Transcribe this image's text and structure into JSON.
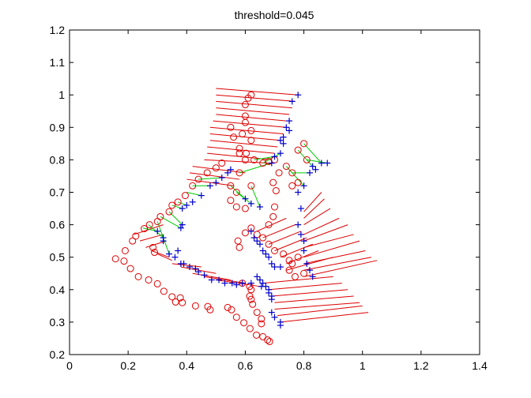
{
  "chart_data": {
    "type": "scatter",
    "title": "threshold=0.045",
    "xlim": [
      0,
      1.4
    ],
    "ylim": [
      0.2,
      1.2
    ],
    "x_ticks": [
      "0",
      "0.2",
      "0.4",
      "0.6",
      "0.8",
      "1",
      "1.2",
      "1.4"
    ],
    "y_ticks": [
      "0.2",
      "0.3",
      "0.4",
      "0.5",
      "0.6",
      "0.7",
      "0.8",
      "0.9",
      "1",
      "1.1",
      "1.2"
    ],
    "grid": false,
    "colors": {
      "circle": "#dd0000",
      "plus": "#0000cc",
      "unmatched_line": "#dd0000",
      "matched_line": "#00cc00"
    },
    "circles": [
      [
        0.157,
        0.495
      ],
      [
        0.186,
        0.488
      ],
      [
        0.208,
        0.465
      ],
      [
        0.235,
        0.44
      ],
      [
        0.27,
        0.43
      ],
      [
        0.3,
        0.418
      ],
      [
        0.322,
        0.395
      ],
      [
        0.35,
        0.378
      ],
      [
        0.362,
        0.362
      ],
      [
        0.378,
        0.375
      ],
      [
        0.385,
        0.36
      ],
      [
        0.43,
        0.35
      ],
      [
        0.472,
        0.348
      ],
      [
        0.48,
        0.338
      ],
      [
        0.54,
        0.345
      ],
      [
        0.553,
        0.338
      ],
      [
        0.57,
        0.315
      ],
      [
        0.595,
        0.298
      ],
      [
        0.616,
        0.28
      ],
      [
        0.638,
        0.26
      ],
      [
        0.66,
        0.255
      ],
      [
        0.676,
        0.245
      ],
      [
        0.683,
        0.24
      ],
      [
        0.19,
        0.52
      ],
      [
        0.215,
        0.55
      ],
      [
        0.226,
        0.565
      ],
      [
        0.255,
        0.588
      ],
      [
        0.273,
        0.6
      ],
      [
        0.3,
        0.61
      ],
      [
        0.31,
        0.625
      ],
      [
        0.34,
        0.64
      ],
      [
        0.35,
        0.66
      ],
      [
        0.37,
        0.67
      ],
      [
        0.395,
        0.69
      ],
      [
        0.42,
        0.72
      ],
      [
        0.44,
        0.74
      ],
      [
        0.47,
        0.76
      ],
      [
        0.5,
        0.775
      ],
      [
        0.52,
        0.79
      ],
      [
        0.285,
        0.53
      ],
      [
        0.29,
        0.515
      ],
      [
        0.55,
        0.72
      ],
      [
        0.57,
        0.7
      ],
      [
        0.62,
        0.72
      ],
      [
        0.55,
        0.675
      ],
      [
        0.57,
        0.655
      ],
      [
        0.6,
        0.65
      ],
      [
        0.58,
        0.76
      ],
      [
        0.6,
        0.935
      ],
      [
        0.6,
        0.915
      ],
      [
        0.603,
        0.82
      ],
      [
        0.6,
        0.8
      ],
      [
        0.58,
        0.82
      ],
      [
        0.58,
        0.835
      ],
      [
        0.56,
        0.87
      ],
      [
        0.59,
        0.88
      ],
      [
        0.55,
        0.9
      ],
      [
        0.61,
        0.99
      ],
      [
        0.6,
        0.97
      ],
      [
        0.62,
        1.0
      ],
      [
        0.62,
        0.86
      ],
      [
        0.62,
        0.89
      ],
      [
        0.63,
        0.8
      ],
      [
        0.66,
        0.79
      ],
      [
        0.68,
        0.795
      ],
      [
        0.7,
        0.8
      ],
      [
        0.715,
        0.76
      ],
      [
        0.74,
        0.78
      ],
      [
        0.76,
        0.76
      ],
      [
        0.78,
        0.73
      ],
      [
        0.76,
        0.72
      ],
      [
        0.78,
        0.83
      ],
      [
        0.8,
        0.85
      ],
      [
        0.81,
        0.8
      ],
      [
        0.695,
        0.73
      ],
      [
        0.705,
        0.705
      ],
      [
        0.7,
        0.655
      ],
      [
        0.695,
        0.625
      ],
      [
        0.68,
        0.6
      ],
      [
        0.58,
        0.53
      ],
      [
        0.575,
        0.55
      ],
      [
        0.6,
        0.575
      ],
      [
        0.62,
        0.59
      ],
      [
        0.64,
        0.57
      ],
      [
        0.66,
        0.56
      ],
      [
        0.68,
        0.54
      ],
      [
        0.7,
        0.52
      ],
      [
        0.73,
        0.51
      ],
      [
        0.75,
        0.49
      ],
      [
        0.76,
        0.48
      ],
      [
        0.75,
        0.46
      ],
      [
        0.77,
        0.44
      ],
      [
        0.8,
        0.45
      ],
      [
        0.78,
        0.5
      ],
      [
        0.59,
        0.42
      ],
      [
        0.615,
        0.41
      ],
      [
        0.62,
        0.4
      ],
      [
        0.615,
        0.38
      ],
      [
        0.62,
        0.37
      ],
      [
        0.625,
        0.355
      ],
      [
        0.64,
        0.33
      ],
      [
        0.655,
        0.31
      ],
      [
        0.655,
        0.295
      ]
    ],
    "pluses": [
      [
        0.39,
        0.48
      ],
      [
        0.41,
        0.47
      ],
      [
        0.43,
        0.465
      ],
      [
        0.44,
        0.455
      ],
      [
        0.46,
        0.445
      ],
      [
        0.485,
        0.43
      ],
      [
        0.51,
        0.43
      ],
      [
        0.53,
        0.42
      ],
      [
        0.555,
        0.42
      ],
      [
        0.57,
        0.415
      ],
      [
        0.59,
        0.42
      ],
      [
        0.62,
        0.42
      ],
      [
        0.655,
        0.41
      ],
      [
        0.68,
        0.4
      ],
      [
        0.69,
        0.37
      ],
      [
        0.69,
        0.33
      ],
      [
        0.7,
        0.315
      ],
      [
        0.72,
        0.3
      ],
      [
        0.72,
        0.29
      ],
      [
        0.3,
        0.58
      ],
      [
        0.32,
        0.56
      ],
      [
        0.32,
        0.55
      ],
      [
        0.34,
        0.51
      ],
      [
        0.36,
        0.5
      ],
      [
        0.37,
        0.52
      ],
      [
        0.38,
        0.48
      ],
      [
        0.38,
        0.59
      ],
      [
        0.385,
        0.6
      ],
      [
        0.385,
        0.65
      ],
      [
        0.4,
        0.66
      ],
      [
        0.42,
        0.67
      ],
      [
        0.45,
        0.69
      ],
      [
        0.48,
        0.72
      ],
      [
        0.5,
        0.73
      ],
      [
        0.52,
        0.745
      ],
      [
        0.54,
        0.76
      ],
      [
        0.55,
        0.77
      ],
      [
        0.6,
        0.68
      ],
      [
        0.62,
        0.665
      ],
      [
        0.65,
        0.655
      ],
      [
        0.69,
        0.79
      ],
      [
        0.7,
        0.81
      ],
      [
        0.72,
        0.82
      ],
      [
        0.73,
        0.85
      ],
      [
        0.74,
        0.9
      ],
      [
        0.75,
        0.92
      ],
      [
        0.76,
        0.98
      ],
      [
        0.78,
        1.0
      ],
      [
        0.75,
        0.89
      ],
      [
        0.73,
        0.87
      ],
      [
        0.72,
        0.86
      ],
      [
        0.62,
        0.58
      ],
      [
        0.63,
        0.56
      ],
      [
        0.64,
        0.55
      ],
      [
        0.65,
        0.54
      ],
      [
        0.66,
        0.52
      ],
      [
        0.67,
        0.51
      ],
      [
        0.68,
        0.5
      ],
      [
        0.69,
        0.48
      ],
      [
        0.7,
        0.47
      ],
      [
        0.72,
        0.47
      ],
      [
        0.64,
        0.44
      ],
      [
        0.65,
        0.43
      ],
      [
        0.66,
        0.42
      ],
      [
        0.67,
        0.41
      ],
      [
        0.68,
        0.39
      ],
      [
        0.69,
        0.38
      ],
      [
        0.78,
        0.6
      ],
      [
        0.79,
        0.57
      ],
      [
        0.8,
        0.55
      ],
      [
        0.8,
        0.52
      ],
      [
        0.81,
        0.48
      ],
      [
        0.82,
        0.46
      ],
      [
        0.83,
        0.44
      ],
      [
        0.78,
        0.7
      ],
      [
        0.79,
        0.65
      ],
      [
        0.8,
        0.72
      ],
      [
        0.82,
        0.76
      ],
      [
        0.83,
        0.78
      ],
      [
        0.84,
        0.77
      ],
      [
        0.86,
        0.79
      ],
      [
        0.88,
        0.79
      ]
    ],
    "unmatched_lines": [
      [
        0.5,
        1.02,
        0.78,
        1.0
      ],
      [
        0.5,
        1.0,
        0.77,
        0.98
      ],
      [
        0.5,
        0.98,
        0.76,
        0.96
      ],
      [
        0.5,
        0.96,
        0.75,
        0.94
      ],
      [
        0.5,
        0.94,
        0.74,
        0.92
      ],
      [
        0.49,
        0.92,
        0.74,
        0.9
      ],
      [
        0.48,
        0.9,
        0.73,
        0.88
      ],
      [
        0.48,
        0.88,
        0.72,
        0.86
      ],
      [
        0.48,
        0.86,
        0.71,
        0.84
      ],
      [
        0.47,
        0.84,
        0.7,
        0.82
      ],
      [
        0.47,
        0.82,
        0.69,
        0.8
      ],
      [
        0.46,
        0.8,
        0.68,
        0.79
      ],
      [
        0.42,
        0.78,
        0.6,
        0.76
      ],
      [
        0.41,
        0.76,
        0.58,
        0.74
      ],
      [
        0.4,
        0.74,
        0.56,
        0.72
      ],
      [
        0.22,
        0.57,
        0.32,
        0.6
      ],
      [
        0.24,
        0.55,
        0.32,
        0.57
      ],
      [
        0.26,
        0.53,
        0.33,
        0.55
      ],
      [
        0.28,
        0.52,
        0.34,
        0.5
      ],
      [
        0.3,
        0.51,
        0.35,
        0.49
      ],
      [
        0.35,
        0.48,
        0.45,
        0.47
      ],
      [
        0.38,
        0.47,
        0.5,
        0.45
      ],
      [
        0.42,
        0.45,
        0.55,
        0.43
      ],
      [
        0.46,
        0.44,
        0.6,
        0.42
      ],
      [
        0.5,
        0.43,
        0.65,
        0.41
      ],
      [
        0.8,
        0.64,
        0.86,
        0.7
      ],
      [
        0.8,
        0.62,
        0.87,
        0.68
      ],
      [
        0.8,
        0.6,
        0.89,
        0.65
      ],
      [
        0.8,
        0.57,
        0.92,
        0.62
      ],
      [
        0.8,
        0.55,
        0.95,
        0.6
      ],
      [
        0.8,
        0.53,
        0.97,
        0.57
      ],
      [
        0.8,
        0.5,
        0.99,
        0.55
      ],
      [
        0.8,
        0.48,
        1.01,
        0.52
      ],
      [
        0.8,
        0.46,
        1.03,
        0.5
      ],
      [
        0.8,
        0.44,
        1.05,
        0.49
      ],
      [
        0.64,
        0.58,
        0.74,
        0.62
      ],
      [
        0.66,
        0.56,
        0.77,
        0.6
      ],
      [
        0.68,
        0.54,
        0.79,
        0.58
      ],
      [
        0.7,
        0.52,
        0.81,
        0.56
      ],
      [
        0.72,
        0.5,
        0.83,
        0.54
      ],
      [
        0.74,
        0.48,
        0.85,
        0.52
      ],
      [
        0.74,
        0.46,
        0.9,
        0.5
      ],
      [
        0.66,
        0.42,
        0.9,
        0.44
      ],
      [
        0.68,
        0.4,
        0.93,
        0.42
      ],
      [
        0.69,
        0.38,
        0.95,
        0.4
      ],
      [
        0.7,
        0.36,
        0.97,
        0.38
      ],
      [
        0.7,
        0.34,
        0.99,
        0.36
      ],
      [
        0.71,
        0.32,
        1.0,
        0.35
      ],
      [
        0.72,
        0.3,
        1.02,
        0.33
      ]
    ],
    "matched_lines": [
      [
        0.25,
        0.59,
        0.3,
        0.58
      ],
      [
        0.27,
        0.6,
        0.32,
        0.56
      ],
      [
        0.3,
        0.61,
        0.34,
        0.51
      ],
      [
        0.31,
        0.625,
        0.38,
        0.59
      ],
      [
        0.34,
        0.64,
        0.385,
        0.6
      ],
      [
        0.35,
        0.66,
        0.385,
        0.65
      ],
      [
        0.37,
        0.67,
        0.4,
        0.66
      ],
      [
        0.4,
        0.7,
        0.45,
        0.69
      ],
      [
        0.42,
        0.72,
        0.48,
        0.72
      ],
      [
        0.44,
        0.74,
        0.52,
        0.745
      ],
      [
        0.55,
        0.72,
        0.6,
        0.68
      ],
      [
        0.57,
        0.7,
        0.62,
        0.665
      ],
      [
        0.62,
        0.72,
        0.65,
        0.655
      ],
      [
        0.58,
        0.76,
        0.69,
        0.79
      ],
      [
        0.63,
        0.8,
        0.7,
        0.81
      ],
      [
        0.66,
        0.79,
        0.72,
        0.82
      ],
      [
        0.74,
        0.78,
        0.8,
        0.72
      ],
      [
        0.76,
        0.76,
        0.82,
        0.76
      ],
      [
        0.78,
        0.83,
        0.83,
        0.78
      ],
      [
        0.8,
        0.85,
        0.86,
        0.79
      ],
      [
        0.81,
        0.8,
        0.88,
        0.79
      ]
    ]
  }
}
